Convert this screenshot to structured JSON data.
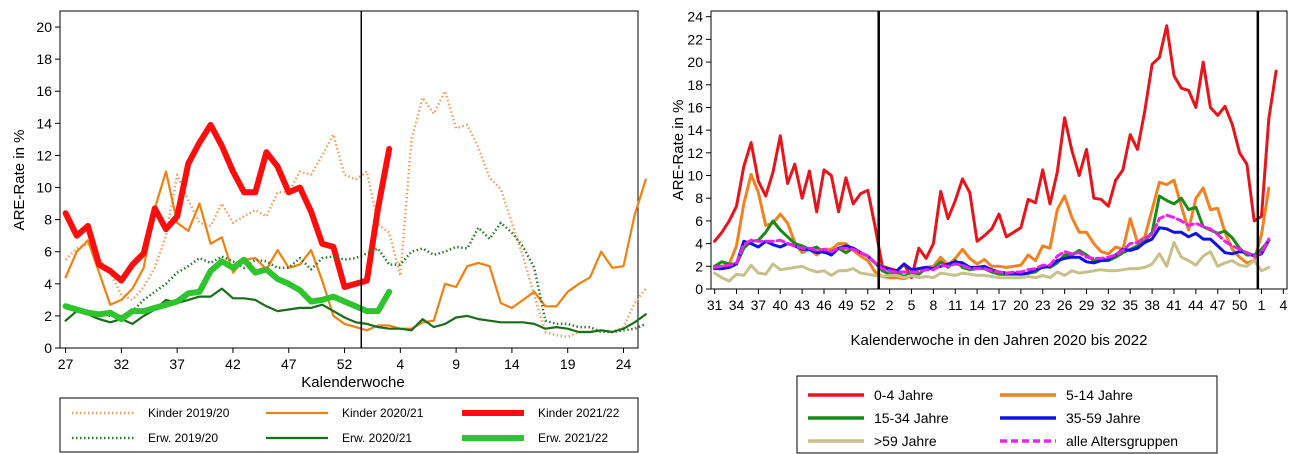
{
  "charts": [
    {
      "id": "left",
      "type": "line",
      "title": "",
      "xlabel": "Kalenderwoche",
      "ylabel": "ARE-Rate in %",
      "ylim": [
        0,
        21
      ],
      "yticks": [
        0,
        2,
        4,
        6,
        8,
        10,
        12,
        14,
        16,
        18,
        20
      ],
      "xtick_labels": [
        "27",
        "32",
        "37",
        "42",
        "47",
        "52",
        "4",
        "9",
        "14",
        "19",
        "24"
      ],
      "xtick_positions": [
        0,
        5,
        10,
        15,
        20,
        25,
        30,
        35,
        40,
        45,
        50
      ],
      "x_range": [
        -0.5,
        51.3
      ],
      "vline_at": 26.5,
      "legend_position": "bottom",
      "series": [
        {
          "name": "Kinder 2019/20",
          "color": "#f0a060",
          "style": "dotted",
          "width": 2.5,
          "values": [
            5.5,
            6.2,
            6.5,
            5.5,
            4.7,
            3.3,
            3.0,
            3.8,
            5.0,
            7.0,
            10.8,
            9.2,
            7.8,
            7.6,
            9.0,
            7.8,
            8.2,
            8.6,
            8.2,
            9.7,
            9.7,
            11.0,
            10.8,
            12.0,
            13.3,
            10.8,
            10.5,
            11.0,
            7.7,
            7.2,
            4.5,
            13.0,
            15.6,
            14.6,
            16.0,
            13.7,
            13.9,
            12.5,
            10.6,
            9.9,
            7.8,
            5.7,
            3.3,
            1.0,
            0.8,
            0.7,
            1.0,
            1.0,
            1.1,
            1.0,
            1.3,
            2.8,
            3.7
          ]
        },
        {
          "name": "Kinder 2020/21",
          "color": "#f08010",
          "style": "solid",
          "width": 2.2,
          "values": [
            4.4,
            6.0,
            6.7,
            4.7,
            2.7,
            3.0,
            3.7,
            5.0,
            8.7,
            11.0,
            7.8,
            7.3,
            9.0,
            6.5,
            6.9,
            4.7,
            5.5,
            5.6,
            4.9,
            6.1,
            5.0,
            5.2,
            6.1,
            4.2,
            2.0,
            1.5,
            1.3,
            1.1,
            1.4,
            1.4,
            1.2,
            1.2,
            1.6,
            1.7,
            4.0,
            3.8,
            5.1,
            5.3,
            5.1,
            2.8,
            2.5,
            3.0,
            3.5,
            2.6,
            2.6,
            3.5,
            4.0,
            4.4,
            6.0,
            5.0,
            5.1,
            8.3,
            10.5
          ]
        },
        {
          "name": "Kinder 2021/22",
          "color": "#ff0d0d",
          "style": "solid",
          "width": 6,
          "values": [
            8.4,
            7.0,
            7.6,
            5.2,
            4.8,
            4.2,
            5.2,
            5.9,
            8.7,
            7.4,
            8.2,
            11.5,
            12.8,
            13.9,
            12.6,
            11.0,
            9.7,
            9.7,
            12.2,
            11.3,
            9.7,
            10.0,
            8.5,
            6.5,
            6.3,
            3.8,
            4.0,
            4.2,
            8.7,
            12.4
          ]
        },
        {
          "name": "Erw. 2019/20",
          "color": "#2a7a2a",
          "style": "dotted",
          "width": 2.5,
          "values": [
            2.5,
            2.3,
            2.3,
            2.1,
            2.0,
            2.0,
            2.3,
            3.0,
            3.5,
            4.0,
            4.7,
            5.1,
            5.6,
            5.3,
            5.7,
            5.4,
            5.0,
            5.5,
            5.4,
            5.0,
            5.0,
            5.6,
            4.9,
            5.6,
            5.7,
            5.5,
            5.6,
            5.9,
            6.2,
            5.2,
            5.2,
            6.0,
            6.2,
            5.8,
            6.0,
            6.3,
            6.2,
            7.5,
            6.8,
            7.8,
            7.2,
            6.3,
            5.0,
            1.7,
            1.5,
            1.5,
            1.3,
            1.3,
            1.0,
            1.0,
            1.1,
            1.2,
            1.5
          ]
        },
        {
          "name": "Erw. 2020/21",
          "color": "#1a6e1a",
          "style": "solid",
          "width": 2.2,
          "values": [
            1.7,
            2.3,
            2.1,
            1.8,
            1.6,
            1.8,
            1.5,
            2.0,
            2.4,
            3.0,
            2.8,
            3.0,
            3.2,
            3.2,
            3.7,
            3.1,
            3.1,
            3.0,
            2.6,
            2.3,
            2.4,
            2.5,
            2.5,
            2.7,
            2.3,
            1.9,
            1.6,
            1.5,
            1.3,
            1.2,
            1.2,
            1.1,
            1.8,
            1.3,
            1.5,
            1.9,
            2.0,
            1.8,
            1.7,
            1.6,
            1.6,
            1.6,
            1.5,
            1.2,
            1.3,
            1.2,
            1.0,
            1.0,
            1.1,
            1.0,
            1.2,
            1.6,
            2.1
          ]
        },
        {
          "name": "Erw. 2021/22",
          "color": "#2ec42e",
          "style": "solid",
          "width": 6,
          "values": [
            2.6,
            2.4,
            2.2,
            2.1,
            2.2,
            1.8,
            2.3,
            2.3,
            2.5,
            2.7,
            2.9,
            3.4,
            3.5,
            4.8,
            5.4,
            5.0,
            5.5,
            4.7,
            4.9,
            4.3,
            4.0,
            3.6,
            2.9,
            3.0,
            3.2,
            2.9,
            2.6,
            2.3,
            2.3,
            3.5
          ]
        }
      ]
    },
    {
      "id": "right",
      "type": "line",
      "title": "",
      "xlabel": "Kalenderwoche in den Jahren 2020 bis 2022",
      "ylabel": "ARE-Rate in %",
      "ylim": [
        0,
        24.5
      ],
      "yticks": [
        0,
        2,
        4,
        6,
        8,
        10,
        12,
        14,
        16,
        18,
        20,
        22,
        24
      ],
      "xtick_labels": [
        "31",
        "34",
        "37",
        "40",
        "43",
        "46",
        "49",
        "52",
        "2",
        "5",
        "8",
        "11",
        "14",
        "17",
        "20",
        "23",
        "26",
        "29",
        "32",
        "35",
        "38",
        "41",
        "44",
        "47",
        "50",
        "1",
        "4"
      ],
      "xtick_positions": [
        0,
        3,
        6,
        9,
        12,
        15,
        18,
        21,
        24,
        27,
        30,
        33,
        36,
        39,
        42,
        45,
        48,
        51,
        54,
        57,
        60,
        63,
        66,
        69,
        72,
        75,
        78
      ],
      "x_range": [
        -0.5,
        78.5
      ],
      "vlines_at": [
        22.5,
        74.5
      ],
      "legend_position": "bottom",
      "series": [
        {
          "name": "0-4 Jahre",
          "color": "#e8141c",
          "style": "solid",
          "width": 3,
          "values": [
            4.2,
            5.0,
            6.0,
            7.3,
            10.8,
            12.9,
            9.5,
            8.2,
            10.3,
            13.5,
            9.3,
            11.0,
            8.0,
            10.4,
            6.8,
            10.5,
            10.0,
            6.8,
            9.8,
            7.5,
            8.4,
            8.7,
            5.5,
            2.0,
            1.8,
            1.6,
            2.2,
            1.0,
            3.6,
            2.7,
            4.0,
            8.6,
            6.2,
            7.8,
            9.7,
            8.5,
            4.2,
            4.7,
            5.3,
            6.6,
            4.6,
            5.0,
            5.4,
            7.9,
            7.6,
            10.5,
            7.5,
            10.3,
            15.1,
            12.2,
            10.0,
            12.3,
            8.0,
            7.9,
            7.3,
            9.6,
            10.5,
            13.6,
            12.3,
            15.7,
            19.8,
            20.4,
            23.2,
            18.8,
            17.7,
            17.5,
            16.0,
            20.0,
            16.0,
            15.3,
            16.1,
            14.5,
            12.0,
            11.0,
            6.0,
            6.4,
            15.0,
            19.2
          ]
        },
        {
          "name": "5-14 Jahre",
          "color": "#f28120",
          "style": "solid",
          "width": 3,
          "values": [
            1.8,
            2.0,
            2.2,
            3.8,
            7.5,
            10.1,
            8.5,
            5.6,
            5.8,
            6.6,
            5.8,
            4.1,
            3.2,
            3.5,
            3.0,
            3.5,
            3.5,
            4.0,
            4.0,
            3.4,
            2.9,
            2.5,
            1.5,
            1.1,
            1.0,
            1.0,
            0.9,
            1.2,
            1.8,
            1.9,
            2.0,
            2.8,
            2.1,
            2.7,
            3.5,
            2.7,
            2.2,
            2.6,
            2.0,
            2.0,
            1.9,
            2.0,
            2.1,
            3.0,
            2.5,
            3.8,
            3.6,
            7.0,
            8.2,
            6.3,
            5.0,
            5.0,
            4.0,
            3.3,
            3.1,
            3.7,
            3.5,
            6.2,
            4.1,
            4.6,
            7.0,
            9.4,
            9.2,
            9.6,
            7.3,
            5.2,
            8.0,
            8.9,
            7.0,
            7.1,
            5.0,
            3.5,
            2.8,
            2.3,
            2.5,
            4.8,
            8.9
          ]
        },
        {
          "name": "15-34 Jahre",
          "color": "#1a8a1a",
          "style": "solid",
          "width": 3,
          "values": [
            2.0,
            2.4,
            2.2,
            2.2,
            3.6,
            4.2,
            4.3,
            5.0,
            6.0,
            5.2,
            4.6,
            4.0,
            3.8,
            3.5,
            3.7,
            3.2,
            3.2,
            3.6,
            3.2,
            3.6,
            3.2,
            2.9,
            2.3,
            1.6,
            1.3,
            1.4,
            1.1,
            1.5,
            1.3,
            1.8,
            1.8,
            2.4,
            1.9,
            2.5,
            1.9,
            1.7,
            1.8,
            1.8,
            1.5,
            1.3,
            1.3,
            1.3,
            1.3,
            1.4,
            1.5,
            2.0,
            1.9,
            2.3,
            3.0,
            3.0,
            3.4,
            3.0,
            2.5,
            2.5,
            2.5,
            2.8,
            3.2,
            3.5,
            3.8,
            4.2,
            5.0,
            8.2,
            7.8,
            7.5,
            8.0,
            7.0,
            7.2,
            5.5,
            5.2,
            4.9,
            5.1,
            4.5,
            3.6,
            3.0,
            3.0,
            3.5,
            4.3
          ]
        },
        {
          "name": "35-59 Jahre",
          "color": "#1010e8",
          "style": "solid",
          "width": 3,
          "values": [
            1.8,
            1.8,
            1.9,
            2.2,
            4.2,
            4.0,
            3.7,
            4.2,
            3.9,
            3.7,
            4.0,
            3.8,
            3.5,
            3.5,
            3.2,
            3.3,
            3.0,
            3.6,
            3.8,
            3.6,
            3.2,
            2.9,
            2.3,
            1.9,
            1.7,
            1.6,
            2.2,
            1.7,
            1.8,
            1.9,
            1.8,
            2.0,
            2.2,
            2.4,
            2.3,
            1.9,
            1.9,
            2.0,
            1.7,
            1.5,
            1.4,
            1.4,
            1.3,
            1.4,
            1.7,
            1.9,
            2.0,
            2.5,
            2.7,
            2.8,
            2.8,
            2.4,
            2.3,
            2.5,
            2.6,
            3.0,
            3.5,
            3.4,
            3.6,
            4.1,
            4.4,
            5.4,
            5.3,
            5.0,
            5.0,
            4.6,
            4.9,
            4.4,
            4.4,
            3.8,
            3.2,
            3.1,
            3.3,
            3.2,
            2.9,
            3.1,
            4.3
          ]
        },
        {
          "name": ">59 Jahre",
          "color": "#c8c08a",
          "style": "solid",
          "width": 3,
          "values": [
            1.4,
            1.0,
            0.7,
            1.3,
            1.2,
            2.1,
            1.4,
            1.3,
            2.2,
            1.7,
            1.8,
            1.9,
            2.0,
            1.7,
            1.5,
            1.6,
            1.2,
            1.6,
            1.6,
            1.8,
            1.4,
            1.3,
            1.2,
            1.1,
            1.2,
            1.2,
            1.0,
            1.2,
            1.0,
            1.1,
            1.0,
            1.4,
            1.3,
            1.2,
            1.4,
            1.3,
            1.2,
            1.2,
            1.1,
            1.0,
            1.0,
            1.0,
            1.0,
            1.1,
            1.0,
            1.2,
            1.0,
            1.5,
            1.2,
            1.6,
            1.4,
            1.5,
            1.6,
            1.7,
            1.6,
            1.6,
            1.7,
            1.8,
            1.8,
            1.9,
            2.2,
            3.1,
            2.0,
            4.1,
            2.8,
            2.5,
            2.1,
            2.9,
            3.3,
            2.0,
            2.3,
            2.5,
            2.1,
            2.0,
            2.5,
            1.6,
            1.9
          ]
        },
        {
          "name": "alle Altersgruppen",
          "color": "#ee20ee",
          "style": "dashed",
          "width": 3,
          "values": [
            1.9,
            2.0,
            2.1,
            2.3,
            3.9,
            4.3,
            4.2,
            4.2,
            4.2,
            4.3,
            4.0,
            3.8,
            3.6,
            3.6,
            3.4,
            3.5,
            3.3,
            3.6,
            3.6,
            3.5,
            3.2,
            2.9,
            2.3,
            1.8,
            1.6,
            1.5,
            1.5,
            1.5,
            1.5,
            1.7,
            1.7,
            2.1,
            2.0,
            2.2,
            2.1,
            1.8,
            1.8,
            1.8,
            1.6,
            1.5,
            1.4,
            1.5,
            1.5,
            1.7,
            1.8,
            2.1,
            2.1,
            2.9,
            3.3,
            3.1,
            3.2,
            2.8,
            2.7,
            2.7,
            2.8,
            3.0,
            3.4,
            4.0,
            4.1,
            4.5,
            4.8,
            6.2,
            6.5,
            6.3,
            6.0,
            5.6,
            5.8,
            5.5,
            5.3,
            4.8,
            4.2,
            3.8,
            3.5,
            3.2,
            2.9,
            3.2,
            4.4
          ]
        }
      ]
    }
  ]
}
